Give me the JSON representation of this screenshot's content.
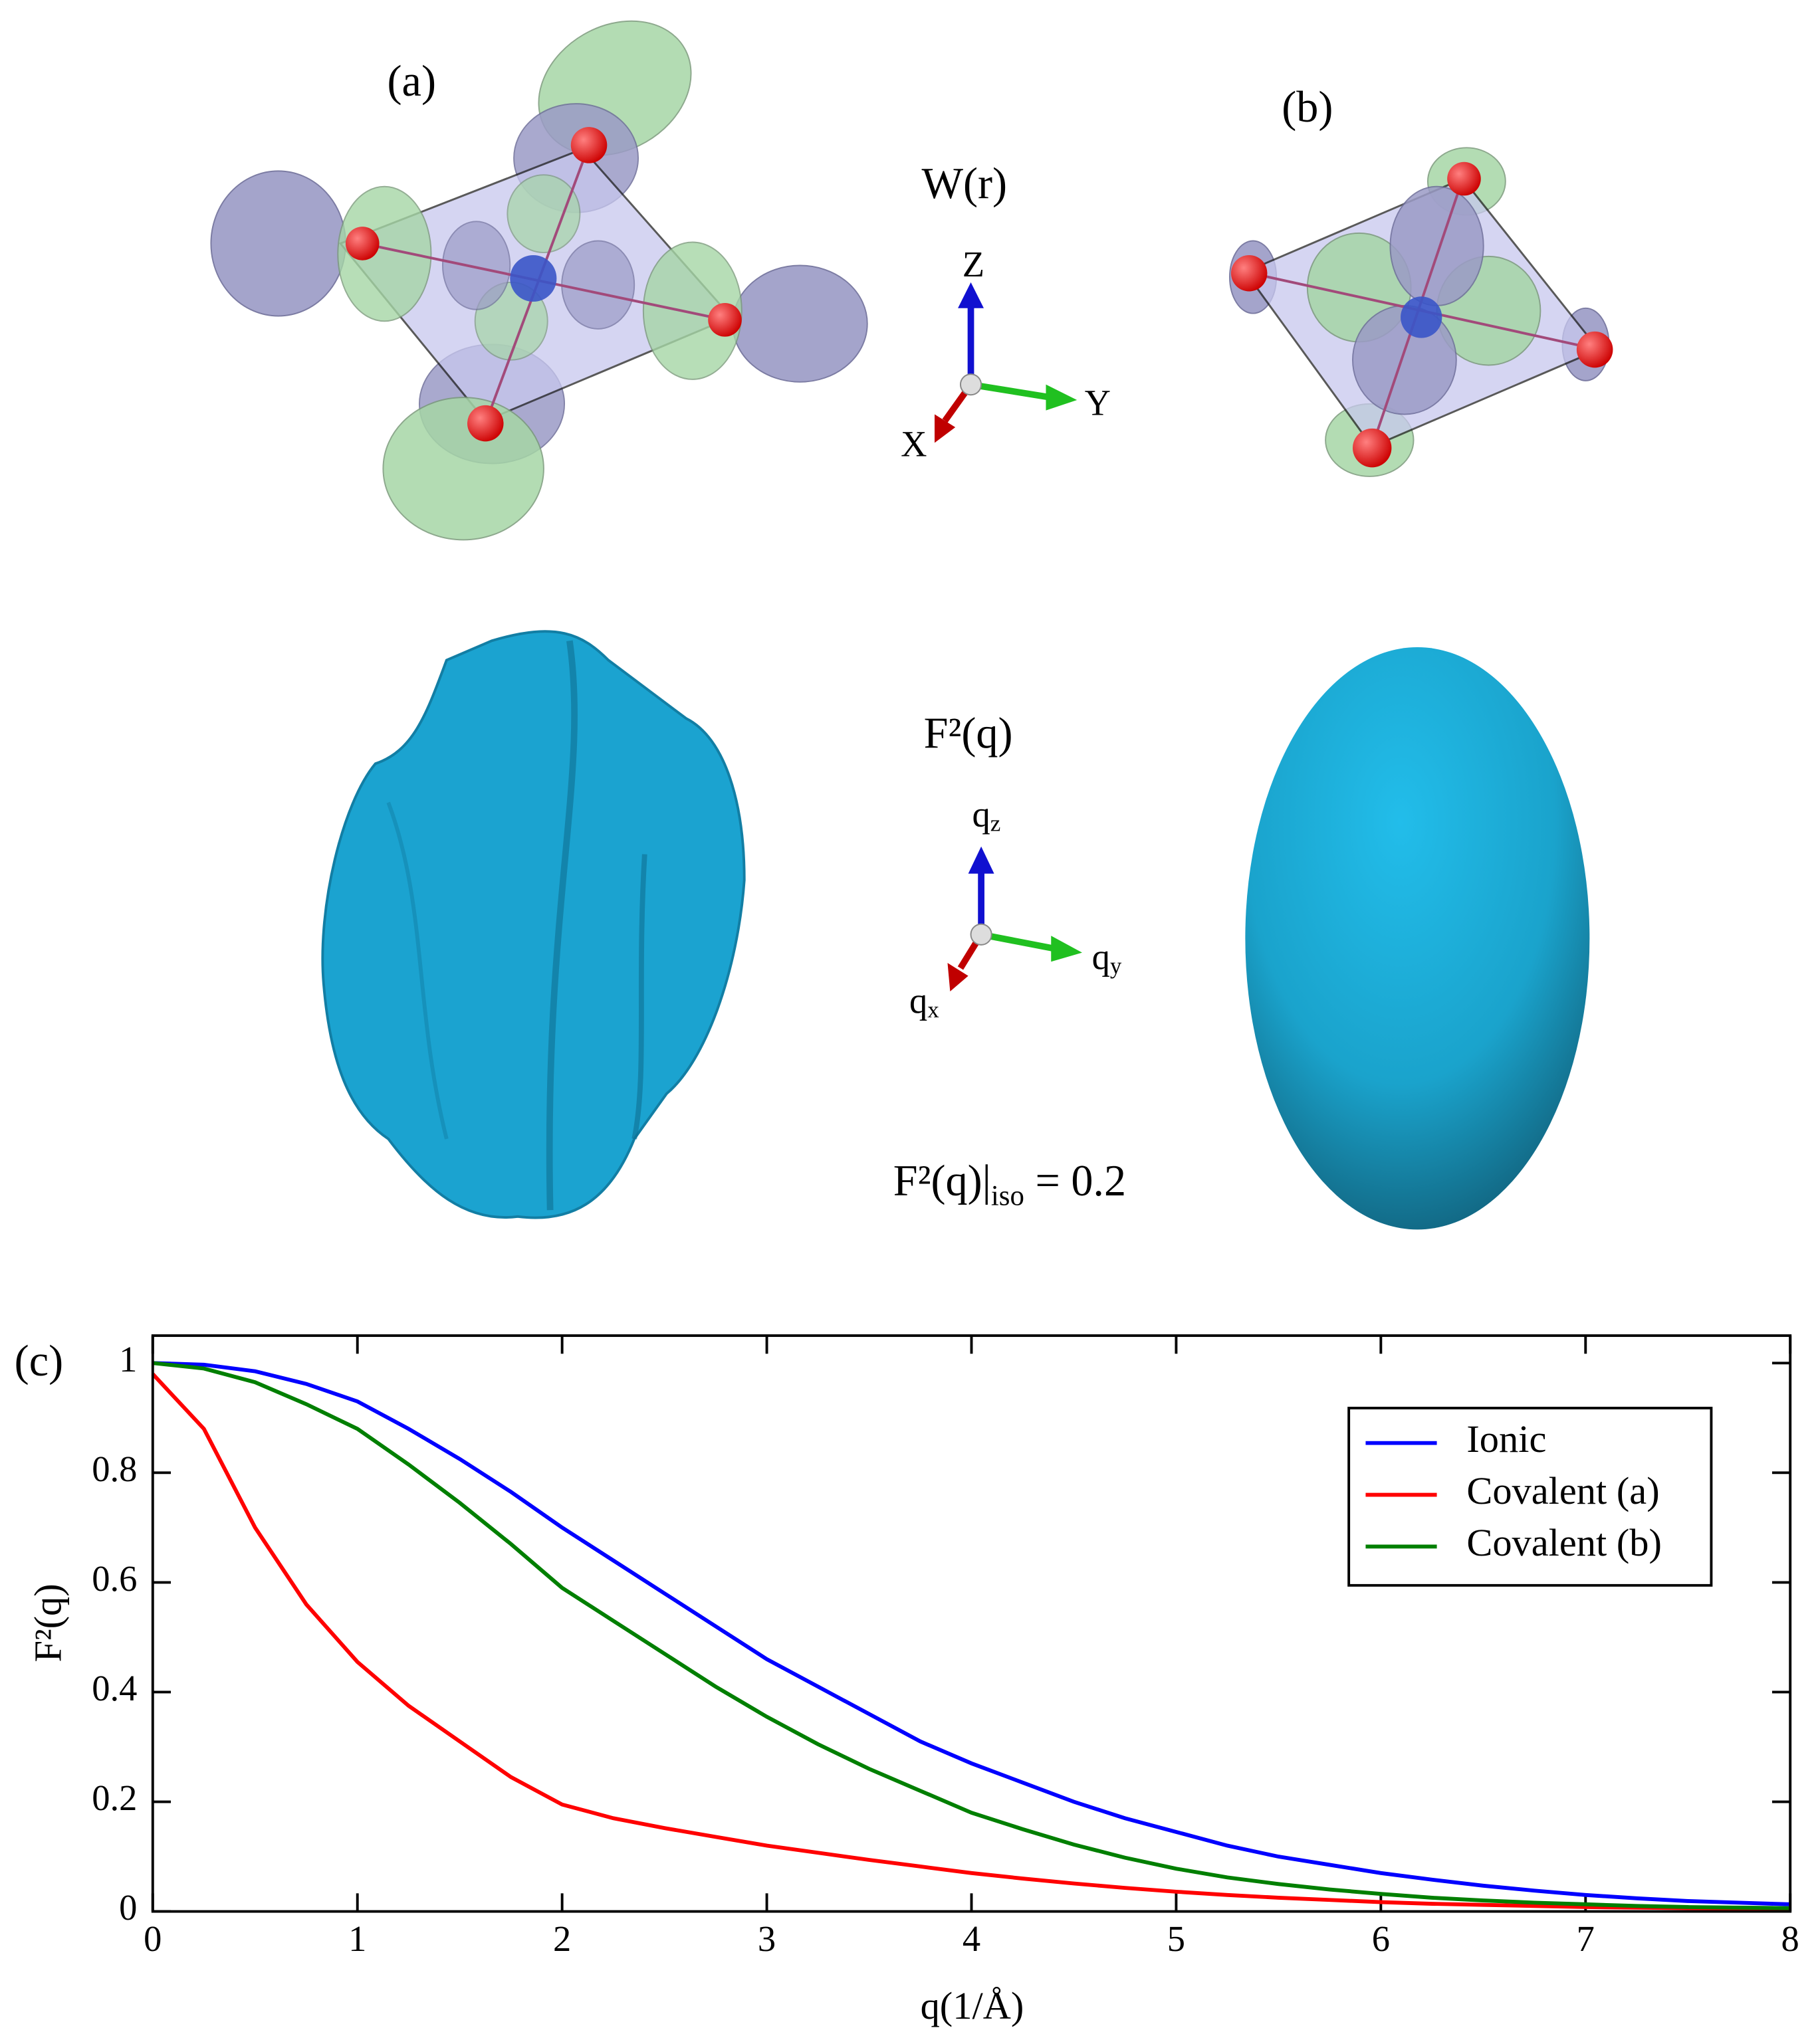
{
  "figure": {
    "panel_a": "(a)",
    "panel_b": "(b)",
    "real_space_label": "W(r)",
    "real_axes": [
      "Z",
      "Y",
      "X"
    ],
    "momentum_label": "F²(q)",
    "momentum_axes": [
      {
        "base": "q",
        "sub": "z"
      },
      {
        "base": "q",
        "sub": "y"
      },
      {
        "base": "q",
        "sub": "x"
      }
    ],
    "isosurface": {
      "main": "F²(q)|",
      "sub": "iso",
      "rest": " = 0.2"
    }
  },
  "chart_data": {
    "type": "line",
    "panel_label": "(c)",
    "x_label": "q(1/Å)",
    "y_label": "F²(q)",
    "xlim": [
      0,
      8
    ],
    "ylim": [
      0,
      1.05
    ],
    "xticks": [
      0,
      1,
      2,
      3,
      4,
      5,
      6,
      7,
      8
    ],
    "yticks": [
      0,
      0.2,
      0.4,
      0.6,
      0.8,
      1
    ],
    "legend": "upper right",
    "x": [
      0,
      0.25,
      0.5,
      0.75,
      1,
      1.25,
      1.5,
      1.75,
      2,
      2.25,
      2.5,
      2.75,
      3,
      3.25,
      3.5,
      3.75,
      4,
      4.25,
      4.5,
      4.75,
      5,
      5.25,
      5.5,
      5.75,
      6,
      6.25,
      6.5,
      6.75,
      7,
      7.25,
      7.5,
      7.75,
      8
    ],
    "series": [
      {
        "name": "Ionic",
        "color": "#0000ff",
        "values": [
          1.0,
          0.997,
          0.985,
          0.962,
          0.93,
          0.88,
          0.825,
          0.765,
          0.7,
          0.64,
          0.58,
          0.52,
          0.46,
          0.41,
          0.36,
          0.31,
          0.27,
          0.235,
          0.2,
          0.17,
          0.145,
          0.12,
          0.1,
          0.085,
          0.07,
          0.058,
          0.047,
          0.038,
          0.03,
          0.024,
          0.019,
          0.016,
          0.013
        ]
      },
      {
        "name": "Covalent (a)",
        "color": "#ff0000",
        "values": [
          0.98,
          0.88,
          0.7,
          0.56,
          0.455,
          0.375,
          0.31,
          0.245,
          0.195,
          0.17,
          0.152,
          0.136,
          0.12,
          0.107,
          0.094,
          0.082,
          0.07,
          0.06,
          0.051,
          0.043,
          0.036,
          0.03,
          0.025,
          0.021,
          0.017,
          0.014,
          0.012,
          0.01,
          0.008,
          0.007,
          0.006,
          0.005,
          0.004
        ]
      },
      {
        "name": "Covalent (b)",
        "color": "#007f00",
        "values": [
          1.0,
          0.99,
          0.965,
          0.925,
          0.88,
          0.815,
          0.745,
          0.67,
          0.59,
          0.53,
          0.47,
          0.41,
          0.355,
          0.305,
          0.26,
          0.22,
          0.18,
          0.15,
          0.122,
          0.098,
          0.078,
          0.062,
          0.05,
          0.04,
          0.032,
          0.025,
          0.02,
          0.016,
          0.013,
          0.01,
          0.008,
          0.007,
          0.006
        ]
      }
    ]
  }
}
